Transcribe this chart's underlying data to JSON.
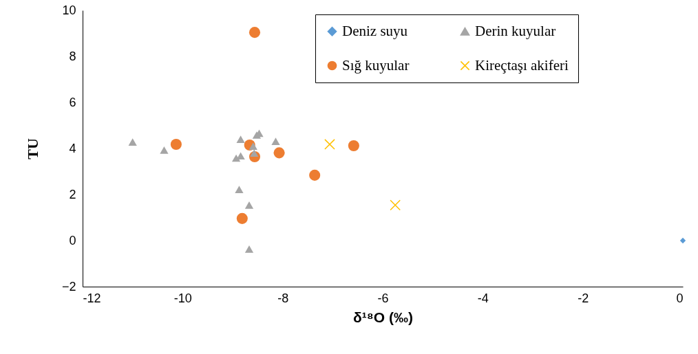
{
  "chart_data": {
    "type": "scatter",
    "xlabel": "δ¹⁸O (‰)",
    "ylabel": "TU",
    "xlim": [
      -12,
      0
    ],
    "xticks": [
      -12,
      -10,
      -8,
      -6,
      -4,
      -2,
      0
    ],
    "ylim": [
      -2,
      10
    ],
    "yticks": [
      -2,
      0,
      2,
      4,
      6,
      8,
      10
    ],
    "grid": false,
    "legend": "top right",
    "series": [
      {
        "name": "Deniz suyu",
        "color": "#5b9bd5",
        "marker": "diamond",
        "x": [
          0
        ],
        "values": [
          0
        ]
      },
      {
        "name": "Sığ kuyular",
        "color": "#ed7d31",
        "marker": "circle",
        "x": [
          -8.56,
          -10.13,
          -8.66,
          -8.56,
          -8.07,
          -7.36,
          -6.58,
          -8.81
        ],
        "values": [
          9.04,
          4.18,
          4.15,
          3.64,
          3.81,
          2.84,
          4.12,
          0.96
        ]
      },
      {
        "name": "Derin kuyular",
        "color": "#a5a5a5",
        "marker": "triangle",
        "x": [
          -11.0,
          -10.37,
          -8.84,
          -8.52,
          -8.47,
          -8.59,
          -8.57,
          -8.93,
          -8.84,
          -8.14,
          -8.87,
          -8.67,
          -8.67
        ],
        "values": [
          4.28,
          3.93,
          4.4,
          4.58,
          4.66,
          4.1,
          3.8,
          3.58,
          3.68,
          4.31,
          2.22,
          1.54,
          -0.37
        ]
      },
      {
        "name": "Kireçtaşı akiferi",
        "color": "#ffc000",
        "marker": "cross",
        "x": [
          -7.06,
          -5.75
        ],
        "values": [
          4.18,
          1.54
        ]
      }
    ]
  }
}
